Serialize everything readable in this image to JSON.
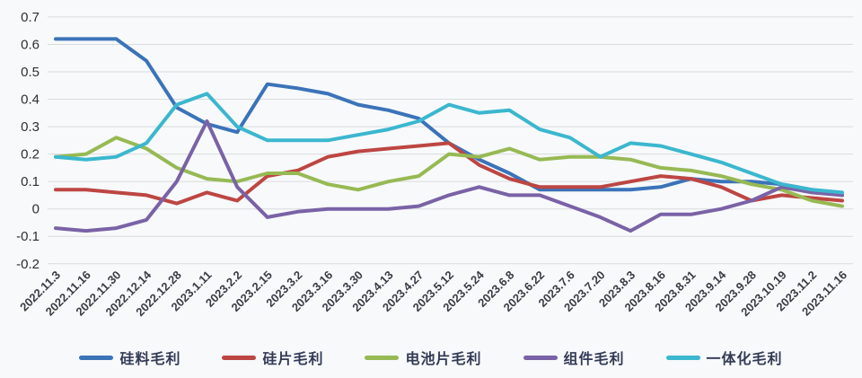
{
  "page": {
    "background": "#f7f9fb",
    "gridline_color": "#d9dbdd",
    "y_axis_label_color": "#2f2f2f",
    "x_axis_label_color": "#3b3b44",
    "legend_text_color": "#333a56"
  },
  "chart_data": {
    "type": "line",
    "title": "",
    "xlabel": "",
    "ylabel": "",
    "grid": true,
    "legend_position": "bottom",
    "ylim": [
      -0.2,
      0.7
    ],
    "y_tick_step": 0.1,
    "y_tick_labels": [
      "0.7",
      "0.6",
      "0.5",
      "0.4",
      "0.3",
      "0.2",
      "0.1",
      "0",
      "-0.1",
      "-0.2"
    ],
    "categories": [
      "2022.11.3",
      "2022.11.16",
      "2022.11.30",
      "2022.12.14",
      "2022.12.28",
      "2023.1.11",
      "2023.2.2",
      "2023.2.15",
      "2023.3.2",
      "2023.3.16",
      "2023.3.30",
      "2023.4.13",
      "2023.4.27",
      "2023.5.12",
      "2023.5.24",
      "2023.6.8",
      "2023.6.22",
      "2023.7.6",
      "2023.7.20",
      "2023.8.3",
      "2023.8.16",
      "2023.8.31",
      "2023.9.14",
      "2023.9.28",
      "2023.10.19",
      "2023.11.2",
      "2023.11.16"
    ],
    "series": [
      {
        "name": "硅料毛利",
        "color": "#3b73b9",
        "values": [
          0.62,
          0.62,
          0.62,
          0.54,
          0.37,
          0.31,
          0.28,
          0.455,
          0.44,
          0.42,
          0.38,
          0.36,
          0.33,
          0.24,
          0.18,
          0.13,
          0.07,
          0.07,
          0.07,
          0.07,
          0.08,
          0.11,
          0.1,
          0.1,
          0.09,
          0.07,
          0.05
        ]
      },
      {
        "name": "硅片毛利",
        "color": "#bd4642",
        "values": [
          0.07,
          0.07,
          0.06,
          0.05,
          0.02,
          0.06,
          0.03,
          0.12,
          0.14,
          0.19,
          0.21,
          0.22,
          0.23,
          0.24,
          0.16,
          0.11,
          0.08,
          0.08,
          0.08,
          0.1,
          0.12,
          0.11,
          0.08,
          0.03,
          0.05,
          0.04,
          0.03
        ]
      },
      {
        "name": "电池片毛利",
        "color": "#97b953",
        "values": [
          0.19,
          0.2,
          0.26,
          0.22,
          0.15,
          0.11,
          0.1,
          0.13,
          0.13,
          0.09,
          0.07,
          0.1,
          0.12,
          0.2,
          0.19,
          0.22,
          0.18,
          0.19,
          0.19,
          0.18,
          0.15,
          0.14,
          0.12,
          0.09,
          0.07,
          0.03,
          0.01
        ]
      },
      {
        "name": "组件毛利",
        "color": "#7a62a6",
        "values": [
          -0.07,
          -0.08,
          -0.07,
          -0.04,
          0.1,
          0.32,
          0.08,
          -0.03,
          -0.01,
          0.0,
          0.0,
          0.0,
          0.01,
          0.05,
          0.08,
          0.05,
          0.05,
          0.01,
          -0.03,
          -0.08,
          -0.02,
          -0.02,
          0.0,
          0.03,
          0.08,
          0.06,
          0.05
        ]
      },
      {
        "name": "一体化毛利",
        "color": "#3bb7ce",
        "values": [
          0.19,
          0.18,
          0.19,
          0.24,
          0.38,
          0.42,
          0.3,
          0.25,
          0.25,
          0.25,
          0.27,
          0.29,
          0.32,
          0.38,
          0.35,
          0.36,
          0.29,
          0.26,
          0.19,
          0.24,
          0.23,
          0.2,
          0.17,
          0.13,
          0.09,
          0.07,
          0.06
        ]
      }
    ]
  }
}
